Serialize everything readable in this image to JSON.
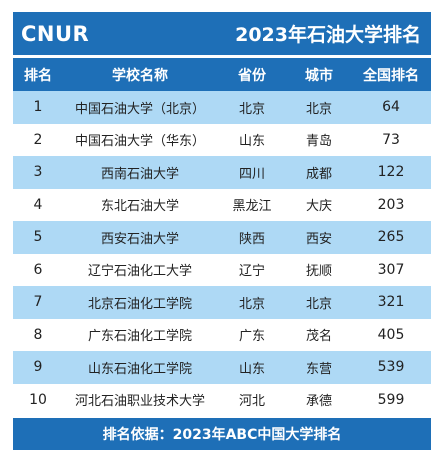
{
  "header": {
    "logo": "CNUR",
    "title": "2023年石油大学排名"
  },
  "columns": [
    "排名",
    "学校名称",
    "省份",
    "城市",
    "全国排名"
  ],
  "rows": [
    {
      "rank": "1",
      "name": "中国石油大学（北京）",
      "province": "北京",
      "city": "北京",
      "national": "64"
    },
    {
      "rank": "2",
      "name": "中国石油大学（华东）",
      "province": "山东",
      "city": "青岛",
      "national": "73"
    },
    {
      "rank": "3",
      "name": "西南石油大学",
      "province": "四川",
      "city": "成都",
      "national": "122"
    },
    {
      "rank": "4",
      "name": "东北石油大学",
      "province": "黑龙江",
      "city": "大庆",
      "national": "203"
    },
    {
      "rank": "5",
      "name": "西安石油大学",
      "province": "陕西",
      "city": "西安",
      "national": "265"
    },
    {
      "rank": "6",
      "name": "辽宁石油化工大学",
      "province": "辽宁",
      "city": "抚顺",
      "national": "307"
    },
    {
      "rank": "7",
      "name": "北京石油化工学院",
      "province": "北京",
      "city": "北京",
      "national": "321"
    },
    {
      "rank": "8",
      "name": "广东石油化工学院",
      "province": "广东",
      "city": "茂名",
      "national": "405"
    },
    {
      "rank": "9",
      "name": "山东石油化工学院",
      "province": "山东",
      "city": "东营",
      "national": "539"
    },
    {
      "rank": "10",
      "name": "河北石油职业技术大学",
      "province": "河北",
      "city": "承德",
      "national": "599"
    }
  ],
  "footer": {
    "text": "排名依据：2023年ABC中国大学排名"
  },
  "colors": {
    "primary": "#1e6fb7",
    "stripe": "#aed9f5"
  }
}
